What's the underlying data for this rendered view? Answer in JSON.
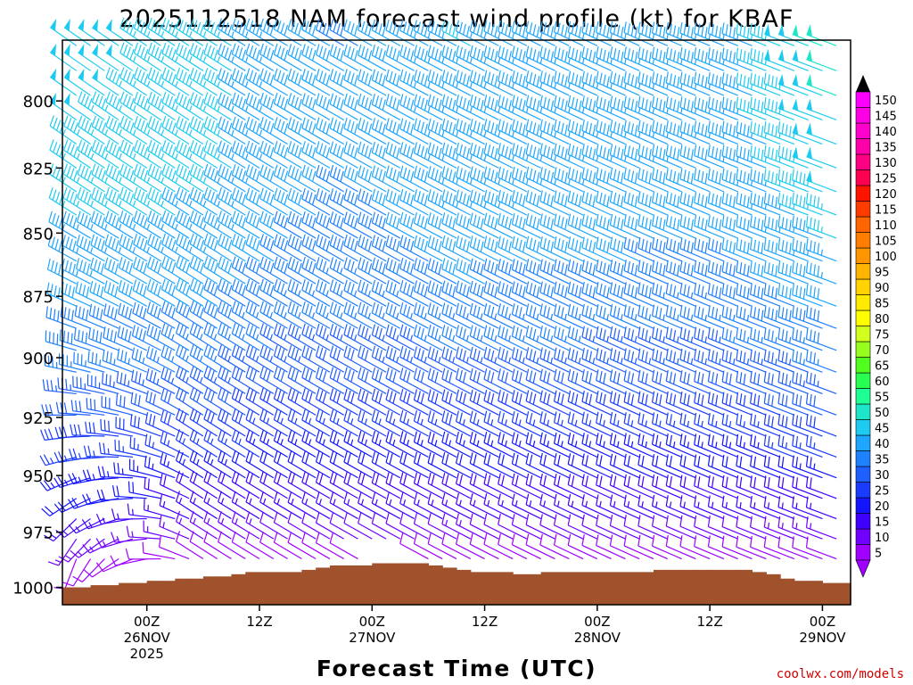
{
  "chart_data": {
    "type": "wind-barb time-height profile",
    "title": "2025112518 NAM forecast wind profile (kt) for KBAF",
    "xlabel": "Forecast Time (UTC)",
    "ylabel": "",
    "credit": "coolwx.com/models",
    "y_axis": {
      "units": "mb",
      "range": [
        1008,
        778
      ],
      "ticks": [
        {
          "value": 800,
          "label": "800"
        },
        {
          "value": 825,
          "label": "825"
        },
        {
          "value": 850,
          "label": "850"
        },
        {
          "value": 875,
          "label": "875"
        },
        {
          "value": 900,
          "label": "900"
        },
        {
          "value": 925,
          "label": "925"
        },
        {
          "value": 950,
          "label": "950"
        },
        {
          "value": 975,
          "label": "975"
        },
        {
          "value": 1000,
          "label": "1000"
        }
      ]
    },
    "x_axis": {
      "units": "forecast hours from 2025112518",
      "range": [
        -3,
        81
      ],
      "ticks": [
        {
          "value": 6,
          "lines": [
            "00Z",
            "26NOV",
            "2025"
          ]
        },
        {
          "value": 18,
          "lines": [
            "12Z"
          ]
        },
        {
          "value": 30,
          "lines": [
            "00Z",
            "27NOV"
          ]
        },
        {
          "value": 42,
          "lines": [
            "12Z"
          ]
        },
        {
          "value": 54,
          "lines": [
            "00Z",
            "28NOV"
          ]
        },
        {
          "value": 66,
          "lines": [
            "12Z"
          ]
        },
        {
          "value": 78,
          "lines": [
            "00Z",
            "29NOV"
          ]
        }
      ]
    },
    "colorbar": {
      "levels": [
        5,
        10,
        15,
        20,
        25,
        30,
        35,
        40,
        45,
        50,
        55,
        60,
        65,
        70,
        75,
        80,
        85,
        90,
        95,
        100,
        105,
        110,
        115,
        120,
        125,
        130,
        135,
        140,
        145,
        150
      ],
      "colors": [
        "#a000ff",
        "#7000ff",
        "#4000ff",
        "#1414ff",
        "#1a3cff",
        "#1e5fff",
        "#1e82ff",
        "#1ea6ff",
        "#1ecbf0",
        "#1ee6c8",
        "#1eff96",
        "#28ff50",
        "#50ff1e",
        "#96ff1e",
        "#d2ff1e",
        "#ffff00",
        "#ffeb00",
        "#ffd200",
        "#ffb400",
        "#ff9600",
        "#ff7d00",
        "#ff6400",
        "#ff3c00",
        "#ff1400",
        "#ff0050",
        "#ff0082",
        "#ff00aa",
        "#ff00cd",
        "#ff00e6",
        "#ff00ff"
      ],
      "units": "kt"
    },
    "surface_pressure_mb": [
      1000,
      1000,
      999,
      999,
      998,
      998,
      997,
      997,
      996,
      996,
      995,
      995,
      994,
      993,
      993,
      993,
      993,
      992,
      991,
      990,
      990,
      990,
      989,
      989,
      989,
      989,
      990,
      991,
      992,
      993,
      993,
      993,
      994,
      994,
      993,
      993,
      993,
      993,
      993,
      993,
      993,
      993,
      992,
      992,
      992,
      992,
      992,
      992,
      992,
      993,
      994,
      996,
      997,
      997,
      998,
      998
    ],
    "wind_model": {
      "hours_start": -1.5,
      "hours_step": 1.5,
      "hours_count": 56,
      "level_top": 780,
      "level_step": 9,
      "level_count": 24,
      "direction_deg": {
        "early": 305,
        "late": 290,
        "low_level_early": 200
      },
      "speed_kt": {
        "low": 5,
        "mid": 30,
        "high_early": 48,
        "high_late": 42
      }
    }
  }
}
